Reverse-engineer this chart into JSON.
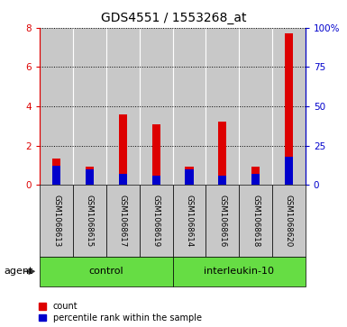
{
  "title": "GDS4551 / 1553268_at",
  "samples": [
    "GSM1068613",
    "GSM1068615",
    "GSM1068617",
    "GSM1068619",
    "GSM1068614",
    "GSM1068616",
    "GSM1068618",
    "GSM1068620"
  ],
  "count_values": [
    1.35,
    0.9,
    3.6,
    3.1,
    0.9,
    3.2,
    0.9,
    7.7
  ],
  "percentile_values": [
    12,
    10,
    7,
    6,
    10,
    6,
    7,
    18
  ],
  "groups": [
    {
      "label": "control",
      "indices": [
        0,
        1,
        2,
        3
      ]
    },
    {
      "label": "interleukin-10",
      "indices": [
        4,
        5,
        6,
        7
      ]
    }
  ],
  "group_color": "#66DD44",
  "bar_color_red": "#DD0000",
  "bar_color_blue": "#0000CC",
  "bar_bg_color": "#C8C8C8",
  "ylim_left": [
    0,
    8
  ],
  "ylim_right": [
    0,
    100
  ],
  "yticks_left": [
    0,
    2,
    4,
    6,
    8
  ],
  "yticks_right": [
    0,
    25,
    50,
    75,
    100
  ],
  "ytick_labels_left": [
    "0",
    "2",
    "4",
    "6",
    "8"
  ],
  "ytick_labels_right": [
    "0",
    "25",
    "50",
    "75",
    "100%"
  ],
  "agent_label": "agent",
  "legend_count": "count",
  "legend_percentile": "percentile rank within the sample"
}
